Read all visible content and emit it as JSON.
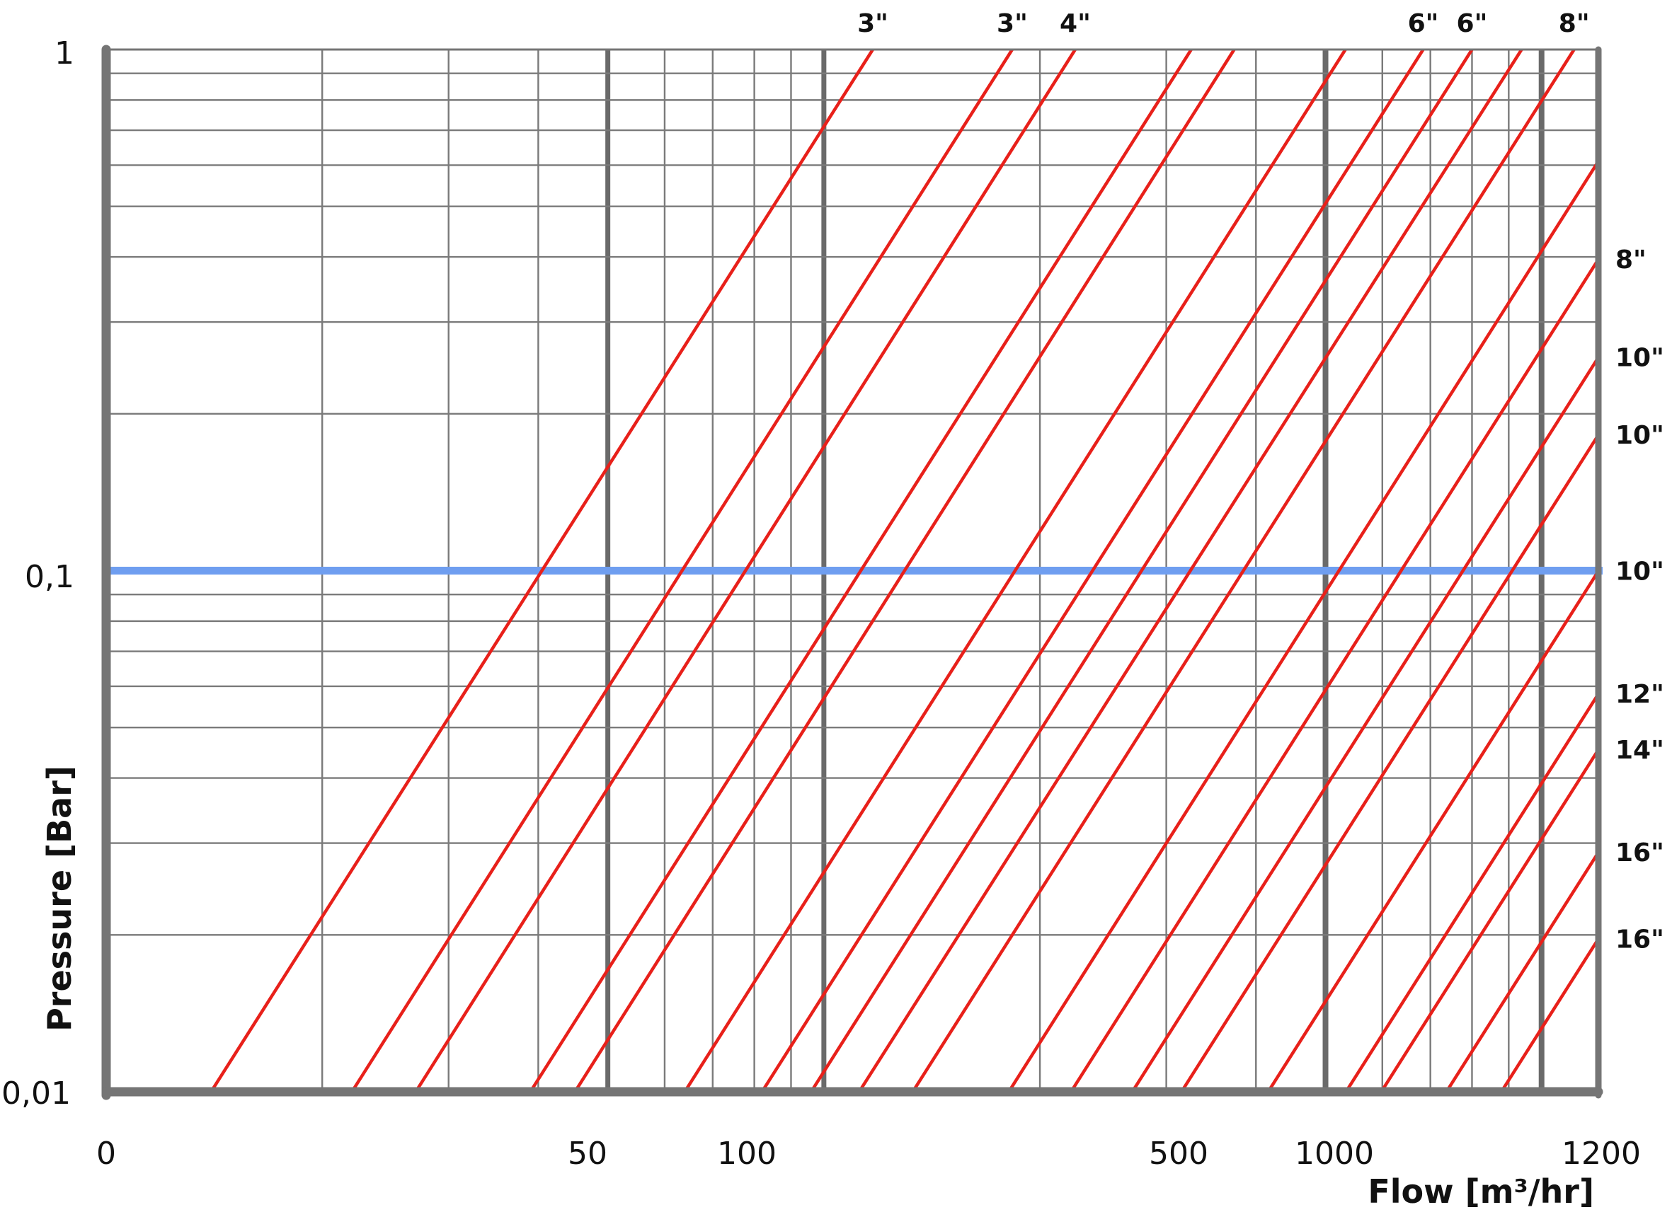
{
  "chart_data": {
    "type": "line",
    "xlabel": "Flow [m³/hr]",
    "ylabel": "Pressure [Bar]",
    "x_scale": "log",
    "y_scale": "log",
    "xlim": [
      0,
      1200
    ],
    "ylim": [
      0.01,
      1
    ],
    "x_tick_labels": [
      "0",
      "50",
      "100",
      "500",
      "1000",
      "1200"
    ],
    "y_tick_labels": [
      "1",
      "0,1",
      "0,01"
    ],
    "grid": true,
    "reference_line": {
      "y": 0.1,
      "color": "#6f9ef0"
    },
    "series_color": "#e8201a",
    "series": [
      {
        "name": "3\"",
        "points": [
          [
            14,
            0.01
          ],
          [
            117,
            1
          ]
        ]
      },
      {
        "name": "3\"",
        "points": [
          [
            22,
            0.01
          ],
          [
            183,
            1
          ]
        ]
      },
      {
        "name": "4\"",
        "points": [
          [
            27,
            0.01
          ],
          [
            224,
            1
          ]
        ]
      },
      {
        "name": "",
        "points": [
          [
            39,
            0.01
          ],
          [
            325,
            1
          ]
        ]
      },
      {
        "name": "",
        "points": [
          [
            45,
            0.01
          ],
          [
            373,
            1
          ]
        ]
      },
      {
        "name": "",
        "points": [
          [
            64,
            0.01
          ],
          [
            533,
            1
          ]
        ]
      },
      {
        "name": "6\"",
        "points": [
          [
            82,
            0.01
          ],
          [
            684,
            1
          ]
        ]
      },
      {
        "name": "6\"",
        "points": [
          [
            96,
            0.01
          ],
          [
            800,
            1
          ]
        ]
      },
      {
        "name": "",
        "points": [
          [
            112,
            0.01
          ],
          [
            938,
            1
          ]
        ]
      },
      {
        "name": "8\"",
        "points": [
          [
            133,
            0.01
          ],
          [
            1110,
            1
          ]
        ]
      },
      {
        "name": "",
        "points": [
          [
            181,
            0.01
          ],
          [
            1506,
            1
          ]
        ]
      },
      {
        "name": "8\"",
        "points": [
          [
            221,
            0.01
          ],
          [
            1838,
            1
          ]
        ]
      },
      {
        "name": "10\"",
        "points": [
          [
            269,
            0.01
          ],
          [
            2246,
            1
          ]
        ]
      },
      {
        "name": "10\"",
        "points": [
          [
            315,
            0.01
          ],
          [
            2630,
            1
          ]
        ]
      },
      {
        "name": "10\"",
        "points": [
          [
            416,
            0.01
          ],
          [
            3468,
            1
          ]
        ]
      },
      {
        "name": "12\"",
        "points": [
          [
            534,
            0.01
          ],
          [
            4452,
            1
          ]
        ]
      },
      {
        "name": "14\"",
        "points": [
          [
            598,
            0.01
          ],
          [
            4991,
            1
          ]
        ]
      },
      {
        "name": "16\"",
        "points": [
          [
            737,
            0.01
          ],
          [
            6153,
            1
          ]
        ]
      },
      {
        "name": "16\"",
        "points": [
          [
            879,
            0.01
          ],
          [
            7339,
            1
          ]
        ]
      }
    ]
  }
}
